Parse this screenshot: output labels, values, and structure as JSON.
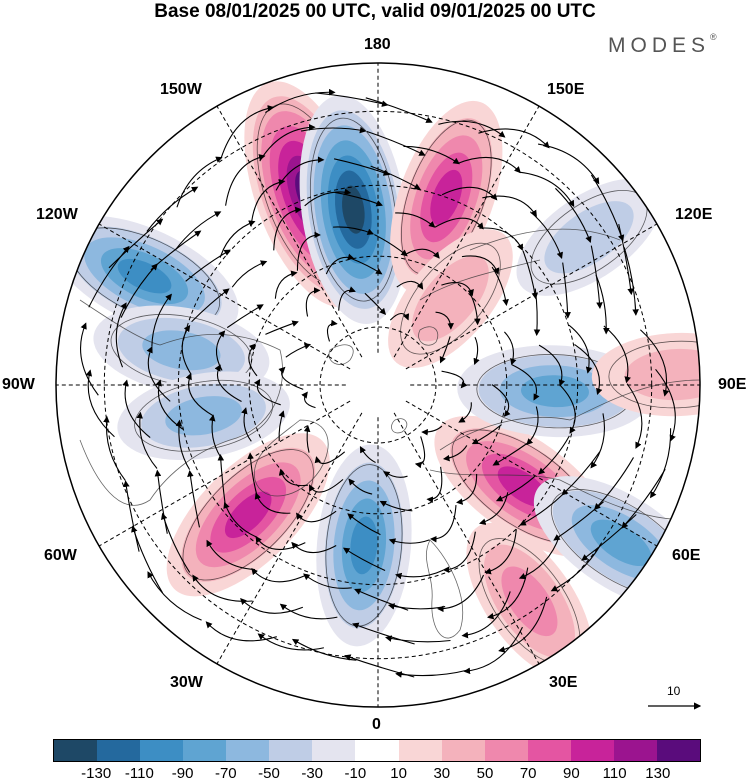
{
  "title": "Base 08/01/2025 00 UTC, valid 09/01/2025 00 UTC",
  "brand": "MODES",
  "brand_mark": "®",
  "longitude_labels": {
    "top": "180",
    "bottom": "0",
    "left": "90W",
    "right": "90E",
    "upper_left_1": "150W",
    "upper_left_2": "120W",
    "upper_right_1": "150E",
    "upper_right_2": "120E",
    "lower_left_1": "60W",
    "lower_left_2": "30W",
    "lower_right_1": "60E",
    "lower_right_2": "30E"
  },
  "reference_vector": {
    "label": "10"
  },
  "colorbar": {
    "colors": [
      "#1e4866",
      "#24699e",
      "#3d8ec4",
      "#5fa4d2",
      "#8db8df",
      "#bfcde6",
      "#e4e4ef",
      "#ffffff",
      "#f9d6d6",
      "#f4b2bc",
      "#ef88ad",
      "#e455a2",
      "#c8239a",
      "#9b148f",
      "#5a0c7c"
    ],
    "ticks": [
      "-130",
      "-110",
      "-90",
      "-70",
      "-50",
      "-30",
      "-10",
      "10",
      "30",
      "50",
      "70",
      "90",
      "110",
      "130"
    ]
  },
  "anomaly_centers": [
    {
      "lon": -160,
      "dist": 0.63,
      "value": 125
    },
    {
      "lon": -172,
      "dist": 0.55,
      "value": -115
    },
    {
      "lon": 160,
      "dist": 0.62,
      "value": 75
    },
    {
      "lon": -115,
      "dist": 0.8,
      "value": -75
    },
    {
      "lon": -100,
      "dist": 0.62,
      "value": -40
    },
    {
      "lon": -80,
      "dist": 0.55,
      "value": -35
    },
    {
      "lon": -45,
      "dist": 0.57,
      "value": 85
    },
    {
      "lon": -5,
      "dist": 0.5,
      "value": -75
    },
    {
      "lon": 35,
      "dist": 0.82,
      "value": 45
    },
    {
      "lon": 55,
      "dist": 0.55,
      "value": 80
    },
    {
      "lon": 57,
      "dist": 0.9,
      "value": -70
    },
    {
      "lon": 88,
      "dist": 0.55,
      "value": -65
    },
    {
      "lon": 92,
      "dist": 0.93,
      "value": 30
    },
    {
      "lon": 125,
      "dist": 0.8,
      "value": -25
    },
    {
      "lon": 140,
      "dist": 0.35,
      "value": 25
    }
  ]
}
